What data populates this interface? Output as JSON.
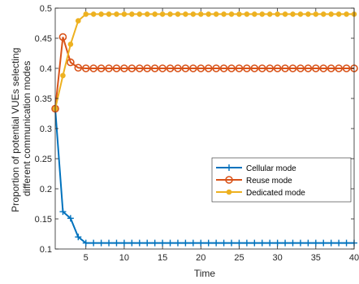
{
  "chart_data": {
    "type": "line",
    "xlabel": "Time",
    "ylabel_lines": [
      "Proportion of potential VUEs selecting",
      "different communication modes"
    ],
    "xlim": [
      1,
      40
    ],
    "ylim": [
      0.1,
      0.5
    ],
    "xticks": [
      5,
      10,
      15,
      20,
      25,
      30,
      35,
      40
    ],
    "yticks": [
      0.1,
      0.15,
      0.2,
      0.25,
      0.3,
      0.35,
      0.4,
      0.45,
      0.5
    ],
    "ytick_labels": [
      "0.1",
      "0.15",
      "0.2",
      "0.25",
      "0.3",
      "0.35",
      "0.4",
      "0.45",
      "0.5"
    ],
    "grid": false,
    "legend_position": "right-center",
    "x": [
      1,
      2,
      3,
      4,
      5,
      6,
      7,
      8,
      9,
      10,
      11,
      12,
      13,
      14,
      15,
      16,
      17,
      18,
      19,
      20,
      21,
      22,
      23,
      24,
      25,
      26,
      27,
      28,
      29,
      30,
      31,
      32,
      33,
      34,
      35,
      36,
      37,
      38,
      39,
      40
    ],
    "series": [
      {
        "name": "Cellular mode",
        "color": "#0072BD",
        "marker": "plus",
        "values": [
          0.333,
          0.162,
          0.151,
          0.12,
          0.11,
          0.11,
          0.11,
          0.11,
          0.11,
          0.11,
          0.11,
          0.11,
          0.11,
          0.11,
          0.11,
          0.11,
          0.11,
          0.11,
          0.11,
          0.11,
          0.11,
          0.11,
          0.11,
          0.11,
          0.11,
          0.11,
          0.11,
          0.11,
          0.11,
          0.11,
          0.11,
          0.11,
          0.11,
          0.11,
          0.11,
          0.11,
          0.11,
          0.11,
          0.11,
          0.11
        ]
      },
      {
        "name": "Reuse mode",
        "color": "#D95319",
        "marker": "circle",
        "values": [
          0.333,
          0.452,
          0.41,
          0.401,
          0.4,
          0.4,
          0.4,
          0.4,
          0.4,
          0.4,
          0.4,
          0.4,
          0.4,
          0.4,
          0.4,
          0.4,
          0.4,
          0.4,
          0.4,
          0.4,
          0.4,
          0.4,
          0.4,
          0.4,
          0.4,
          0.4,
          0.4,
          0.4,
          0.4,
          0.4,
          0.4,
          0.4,
          0.4,
          0.4,
          0.4,
          0.4,
          0.4,
          0.4,
          0.4,
          0.4
        ]
      },
      {
        "name": "Dedicated mode",
        "color": "#EDB120",
        "marker": "dot",
        "values": [
          0.333,
          0.388,
          0.44,
          0.479,
          0.49,
          0.49,
          0.49,
          0.49,
          0.49,
          0.49,
          0.49,
          0.49,
          0.49,
          0.49,
          0.49,
          0.49,
          0.49,
          0.49,
          0.49,
          0.49,
          0.49,
          0.49,
          0.49,
          0.49,
          0.49,
          0.49,
          0.49,
          0.49,
          0.49,
          0.49,
          0.49,
          0.49,
          0.49,
          0.49,
          0.49,
          0.49,
          0.49,
          0.49,
          0.49,
          0.49
        ]
      }
    ]
  }
}
